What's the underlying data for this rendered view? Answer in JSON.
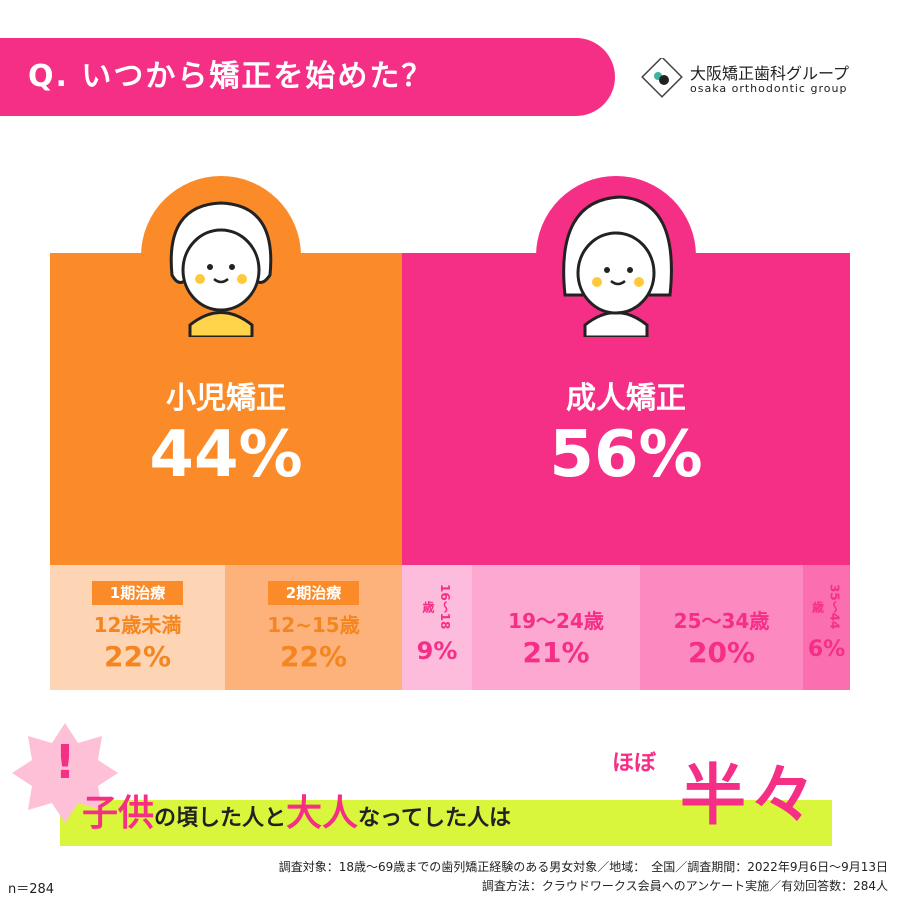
{
  "header": {
    "title": "Q. いつから矯正を始めた？"
  },
  "logo": {
    "name": "大阪矯正歯科グループ",
    "sub": "osaka orthodontic group"
  },
  "groups": [
    {
      "label": "小児矯正",
      "percent": "44%",
      "segments": [
        {
          "tag": "1期治療",
          "label": "12歳未満",
          "percent": "22%"
        },
        {
          "tag": "2期治療",
          "label": "12~15歳",
          "percent": "22%"
        }
      ]
    },
    {
      "label": "成人矯正",
      "percent": "56%",
      "segments": [
        {
          "label": "16〜18歳",
          "percent": "9%"
        },
        {
          "label": "19〜24歳",
          "percent": "21%"
        },
        {
          "label": "25〜34歳",
          "percent": "20%"
        },
        {
          "label": "35〜44歳",
          "percent": "6%"
        }
      ]
    }
  ],
  "banner": {
    "mark": "!",
    "parts": [
      "子供",
      "の頃した人と",
      "大人",
      "なってした人は"
    ],
    "small": "ほぼ",
    "big": "半々"
  },
  "footer": {
    "n": "n＝284",
    "lines": [
      "調査対象：18歳〜69歳までの歯列矯正経験のある男女対象／地域：　全国／調査期間：2022年9月6日〜9月13日",
      "調査方法：クラウドワークス会員へのアンケート実施／有効回答数：284人"
    ]
  }
}
